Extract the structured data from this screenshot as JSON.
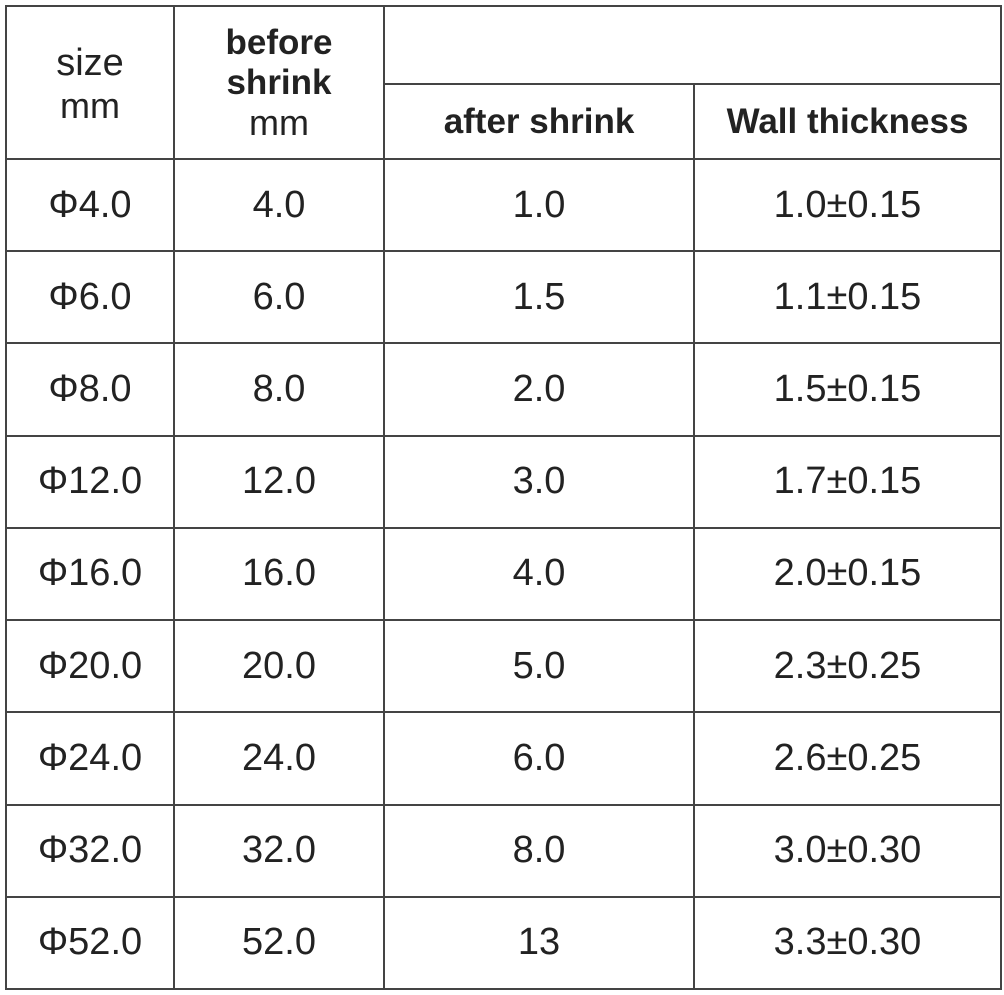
{
  "header": {
    "size": "size",
    "size_unit": "mm",
    "before": "before shrink",
    "before_unit": "mm",
    "after": "after shrink",
    "wall": "Wall thickness"
  },
  "table": {
    "rows": [
      [
        "Φ4.0",
        "4.0",
        "1.0",
        "1.0±0.15"
      ],
      [
        "Φ6.0",
        "6.0",
        "1.5",
        "1.1±0.15"
      ],
      [
        "Φ8.0",
        "8.0",
        "2.0",
        "1.5±0.15"
      ],
      [
        "Φ12.0",
        "12.0",
        "3.0",
        "1.7±0.15"
      ],
      [
        "Φ16.0",
        "16.0",
        "4.0",
        "2.0±0.15"
      ],
      [
        "Φ20.0",
        "20.0",
        "5.0",
        "2.3±0.25"
      ],
      [
        "Φ24.0",
        "24.0",
        "6.0",
        "2.6±0.25"
      ],
      [
        "Φ32.0",
        "32.0",
        "8.0",
        "3.0±0.30"
      ],
      [
        "Φ52.0",
        "52.0",
        "13",
        "3.3±0.30"
      ]
    ]
  }
}
